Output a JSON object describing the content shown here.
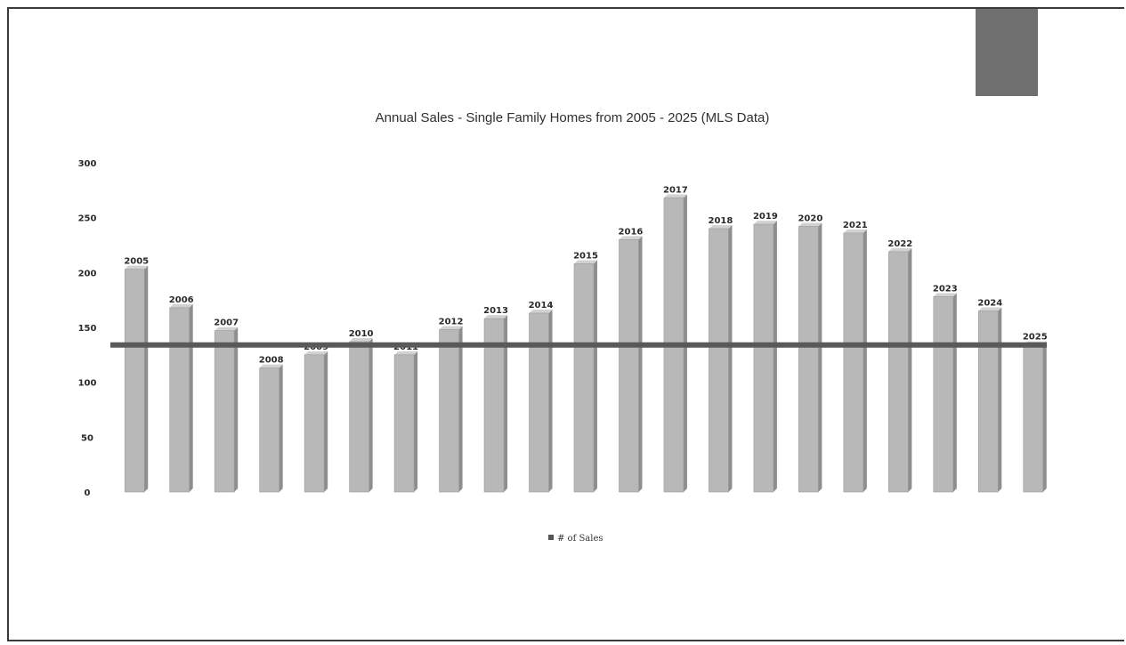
{
  "chart_data": {
    "type": "bar",
    "title": "Annual Sales - Single Family Homes from 2005 - 2025 (MLS Data)",
    "xlabel": "",
    "ylabel": "",
    "categories": [
      "2005",
      "2006",
      "2007",
      "2008",
      "2009",
      "2010",
      "2011",
      "2012",
      "2013",
      "2014",
      "2015",
      "2016",
      "2017",
      "2018",
      "2019",
      "2020",
      "2021",
      "2022",
      "2023",
      "2024",
      "2025"
    ],
    "series": [
      {
        "name": "# of Sales",
        "values": [
          203,
          168,
          147,
          113,
          125,
          137,
          125,
          148,
          158,
          163,
          208,
          230,
          268,
          240,
          244,
          242,
          236,
          219,
          178,
          165,
          134
        ]
      }
    ],
    "data_labels": [
      "2005",
      "2006",
      "2007",
      "2008",
      "2009",
      "2010",
      "2011",
      "2012",
      "2013",
      "2014",
      "2015",
      "2016",
      "2017",
      "2018",
      "2019",
      "2020",
      "2021",
      "2022",
      "2023",
      "2024",
      "2025"
    ],
    "yticks": [
      "0",
      "50",
      "100",
      "150",
      "200",
      "250",
      "300"
    ],
    "ylim": [
      0,
      300
    ],
    "reference_line": 134,
    "legend": "bottom",
    "grid": false,
    "colors": {
      "bar": "#b8b8b8",
      "bar_side": "#8e8e8e",
      "bar_top": "#d2d2d2",
      "reference_line": "#595959",
      "text": "#2a2a2a"
    }
  }
}
